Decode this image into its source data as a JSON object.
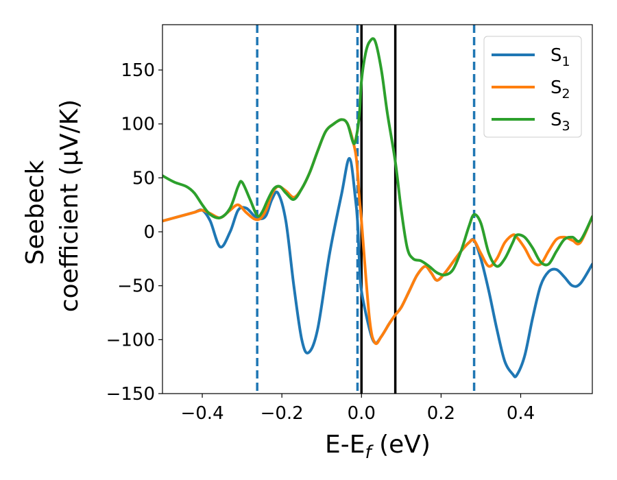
{
  "chart_data": {
    "type": "line",
    "xlabel": "E-E",
    "xlabel_sub": "f",
    "xlabel_unit": " (eV)",
    "ylabel_line1": "Seebeck",
    "ylabel_line2": "coefficient  (μV/K)",
    "xlim": [
      -0.5,
      0.58
    ],
    "ylim": [
      -150,
      192
    ],
    "xticks": [
      -0.4,
      -0.2,
      0.0,
      0.2,
      0.4
    ],
    "xtick_labels": [
      "−0.4",
      "−0.2",
      "0.0",
      "0.2",
      "0.4"
    ],
    "yticks": [
      -150,
      -100,
      -50,
      0,
      50,
      100,
      150
    ],
    "ytick_labels": [
      "−150",
      "−100",
      "−50",
      "0",
      "50",
      "100",
      "150"
    ],
    "grid": false,
    "legend_position": "top-right",
    "vlines": [
      {
        "x": -0.262,
        "style": "dashed",
        "color": "#1f77b4"
      },
      {
        "x": -0.01,
        "style": "dashed",
        "color": "#1f77b4"
      },
      {
        "x": 0.283,
        "style": "dashed",
        "color": "#1f77b4"
      },
      {
        "x": 0.0,
        "style": "solid",
        "color": "#000000"
      },
      {
        "x": 0.085,
        "style": "solid",
        "color": "#000000"
      }
    ],
    "series": [
      {
        "name": "S",
        "sub": "1",
        "color": "#1f77b4",
        "x": [
          -0.5,
          -0.45,
          -0.42,
          -0.4,
          -0.38,
          -0.355,
          -0.33,
          -0.31,
          -0.29,
          -0.27,
          -0.255,
          -0.24,
          -0.225,
          -0.21,
          -0.19,
          -0.17,
          -0.15,
          -0.133,
          -0.11,
          -0.08,
          -0.05,
          -0.03,
          -0.015,
          -0.01,
          -0.005,
          0.0,
          0.02,
          0.034,
          0.05,
          0.07,
          0.085,
          0.1,
          0.12,
          0.14,
          0.16,
          0.175,
          0.19,
          0.21,
          0.23,
          0.25,
          0.27,
          0.283,
          0.3,
          0.32,
          0.34,
          0.36,
          0.38,
          0.39,
          0.41,
          0.43,
          0.45,
          0.47,
          0.49,
          0.51,
          0.53,
          0.55,
          0.58
        ],
        "y": [
          10,
          15,
          18,
          20,
          10,
          -14,
          0,
          20,
          22,
          15,
          12,
          15,
          30,
          36,
          10,
          -50,
          -100,
          -112,
          -90,
          -20,
          35,
          68,
          30,
          10,
          -30,
          -55,
          -90,
          -103,
          -97,
          -85,
          -77,
          -70,
          -55,
          -40,
          -32,
          -38,
          -45,
          -38,
          -28,
          -18,
          -10,
          -8,
          -25,
          -55,
          -90,
          -120,
          -132,
          -133,
          -115,
          -80,
          -50,
          -37,
          -35,
          -42,
          -50,
          -48,
          -30
        ]
      },
      {
        "name": "S",
        "sub": "2",
        "color": "#ff7f0e",
        "x": [
          -0.5,
          -0.45,
          -0.42,
          -0.4,
          -0.38,
          -0.355,
          -0.33,
          -0.31,
          -0.29,
          -0.27,
          -0.255,
          -0.24,
          -0.225,
          -0.21,
          -0.19,
          -0.17,
          -0.15,
          -0.13,
          -0.11,
          -0.09,
          -0.07,
          -0.05,
          -0.035,
          -0.02,
          -0.012,
          -0.005,
          0.0,
          0.02,
          0.034,
          0.05,
          0.07,
          0.085,
          0.1,
          0.12,
          0.14,
          0.16,
          0.175,
          0.19,
          0.21,
          0.23,
          0.25,
          0.27,
          0.283,
          0.3,
          0.32,
          0.34,
          0.36,
          0.38,
          0.39,
          0.41,
          0.43,
          0.45,
          0.47,
          0.49,
          0.51,
          0.53,
          0.55,
          0.58
        ],
        "y": [
          10,
          15,
          18,
          20,
          17,
          13,
          20,
          25,
          18,
          12,
          12,
          20,
          35,
          42,
          38,
          32,
          40,
          55,
          75,
          93,
          100,
          104,
          100,
          82,
          65,
          30,
          10,
          -80,
          -103,
          -97,
          -85,
          -77,
          -70,
          -55,
          -40,
          -32,
          -38,
          -45,
          -38,
          -28,
          -18,
          -10,
          -8,
          -20,
          -32,
          -25,
          -10,
          -3,
          -5,
          -15,
          -28,
          -30,
          -18,
          -7,
          -5,
          -8,
          -10,
          14
        ]
      },
      {
        "name": "S",
        "sub": "3",
        "color": "#2ca02c",
        "x": [
          -0.5,
          -0.47,
          -0.44,
          -0.42,
          -0.4,
          -0.38,
          -0.355,
          -0.33,
          -0.31,
          -0.3,
          -0.28,
          -0.262,
          -0.25,
          -0.235,
          -0.22,
          -0.205,
          -0.19,
          -0.17,
          -0.15,
          -0.13,
          -0.11,
          -0.09,
          -0.07,
          -0.05,
          -0.035,
          -0.02,
          -0.012,
          -0.005,
          0.0,
          0.01,
          0.02,
          0.034,
          0.05,
          0.065,
          0.085,
          0.1,
          0.115,
          0.13,
          0.15,
          0.17,
          0.19,
          0.21,
          0.23,
          0.25,
          0.27,
          0.283,
          0.3,
          0.32,
          0.34,
          0.36,
          0.38,
          0.39,
          0.41,
          0.43,
          0.45,
          0.47,
          0.49,
          0.51,
          0.53,
          0.55,
          0.58
        ],
        "y": [
          52,
          46,
          42,
          36,
          25,
          16,
          13,
          22,
          42,
          46,
          30,
          15,
          18,
          30,
          40,
          42,
          36,
          30,
          40,
          55,
          75,
          93,
          100,
          104,
          100,
          82,
          90,
          110,
          140,
          165,
          176,
          177,
          150,
          110,
          65,
          20,
          -15,
          -25,
          -27,
          -32,
          -38,
          -40,
          -35,
          -18,
          5,
          16,
          8,
          -20,
          -32,
          -25,
          -10,
          -3,
          -5,
          -15,
          -28,
          -30,
          -18,
          -7,
          -5,
          -8,
          14
        ]
      }
    ]
  }
}
